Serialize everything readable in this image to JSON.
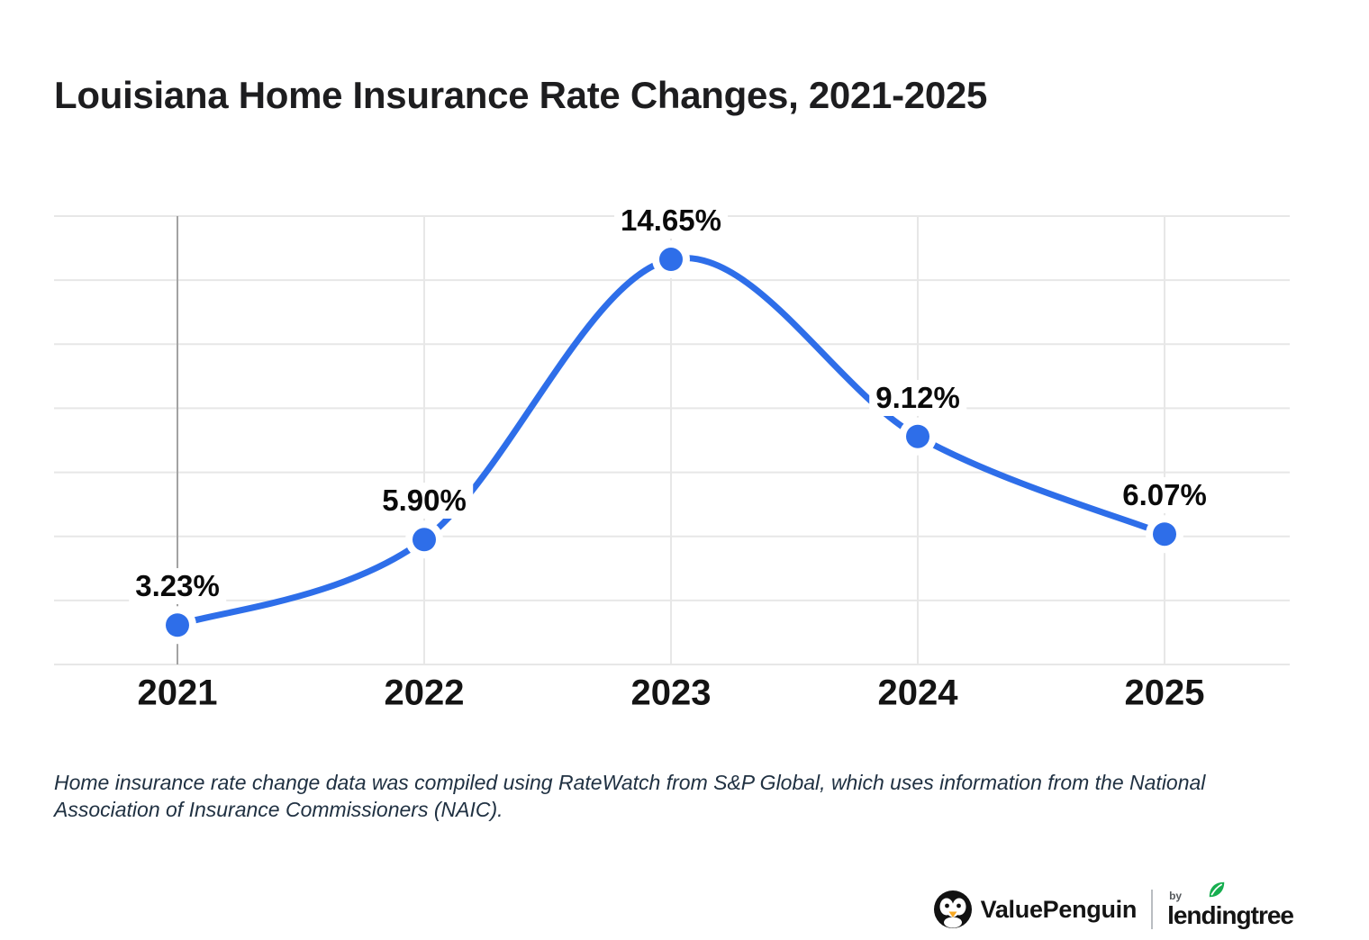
{
  "title": "Louisiana Home Insurance Rate Changes, 2021-2025",
  "chart_data": {
    "type": "line",
    "title": "Louisiana Home Insurance Rate Changes, 2021-2025",
    "categories": [
      "2021",
      "2022",
      "2023",
      "2024",
      "2025"
    ],
    "values": [
      3.23,
      5.9,
      14.65,
      9.12,
      6.07
    ],
    "point_labels": [
      "3.23%",
      "5.90%",
      "14.65%",
      "9.12%",
      "6.07%"
    ],
    "xlabel": "",
    "ylabel": "",
    "ylim": [
      2,
      16
    ],
    "grid_step": 2,
    "grid": true,
    "legend": false,
    "y_tick_labels_visible": false
  },
  "style": {
    "line_color": "#2e6ee9",
    "marker_color": "#2e6ee9",
    "grid_light": "#e7e7e7",
    "grid_dark": "#a3a3a3",
    "leaf_green": "#16ae4f",
    "beak_orange": "#f7a823"
  },
  "footnote": {
    "text": "Home insurance rate change data was compiled using RateWatch from S&P Global, which uses information from the National Association of Insurance Commissioners (NAIC)."
  },
  "branding": {
    "valuepenguin": "ValuePenguin",
    "by": "by",
    "lendingtree": "lendingtree"
  }
}
